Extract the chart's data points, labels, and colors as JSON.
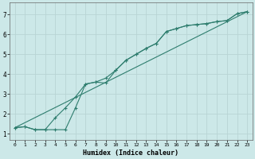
{
  "xlabel": "Humidex (Indice chaleur)",
  "xlim": [
    -0.5,
    23.5
  ],
  "ylim": [
    0.7,
    7.6
  ],
  "xticks": [
    0,
    1,
    2,
    3,
    4,
    5,
    6,
    7,
    8,
    9,
    10,
    11,
    12,
    13,
    14,
    15,
    16,
    17,
    18,
    19,
    20,
    21,
    22,
    23
  ],
  "yticks": [
    1,
    2,
    3,
    4,
    5,
    6,
    7
  ],
  "bg_color": "#cce8e8",
  "grid_color": "#b8d4d4",
  "line_color": "#2e7d6e",
  "line1_x": [
    0,
    1,
    2,
    3,
    4,
    5,
    6,
    7,
    8,
    9,
    10,
    11,
    12,
    13,
    14,
    15,
    16,
    17,
    18,
    19,
    20,
    21,
    22,
    23
  ],
  "line1_y": [
    1.3,
    1.35,
    1.2,
    1.2,
    1.8,
    2.3,
    2.85,
    3.5,
    3.6,
    3.8,
    4.2,
    4.7,
    5.0,
    5.3,
    5.55,
    6.15,
    6.3,
    6.45,
    6.5,
    6.55,
    6.65,
    6.7,
    7.05,
    7.15
  ],
  "line2_x": [
    0,
    1,
    2,
    3,
    4,
    5,
    6,
    7,
    8,
    9,
    10,
    11,
    12,
    13,
    14,
    15,
    16,
    17,
    18,
    19,
    20,
    21,
    22,
    23
  ],
  "line2_y": [
    1.3,
    1.35,
    1.2,
    1.2,
    1.2,
    1.2,
    2.3,
    3.5,
    3.6,
    3.55,
    4.2,
    4.7,
    5.0,
    5.3,
    5.55,
    6.15,
    6.3,
    6.45,
    6.5,
    6.55,
    6.65,
    6.7,
    7.05,
    7.15
  ],
  "line3_x": [
    0,
    23
  ],
  "line3_y": [
    1.3,
    7.15
  ]
}
